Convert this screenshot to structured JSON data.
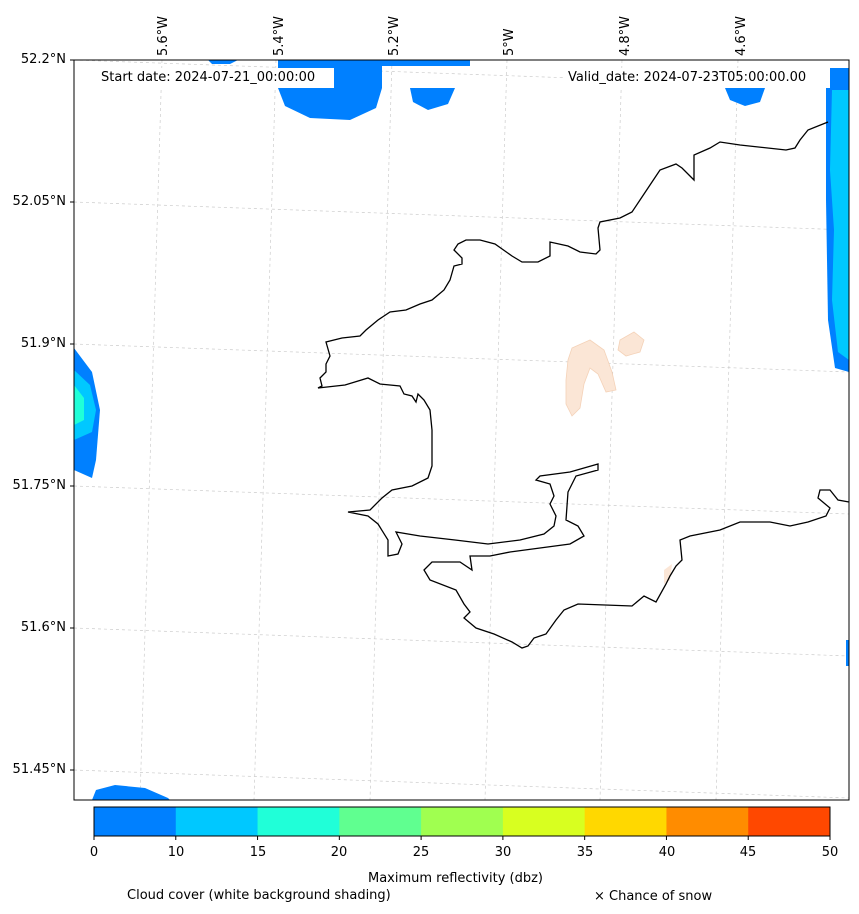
{
  "map": {
    "start_date": "Start date: 2024-07-21_00:00:00",
    "valid_date": "Valid_date: 2024-07-23T05:00:00.00",
    "lon_labels": [
      "5.6°W",
      "5.4°W",
      "5.2°W",
      "5°W",
      "4.8°W",
      "4.6°W"
    ],
    "lat_labels": [
      "52.2°N",
      "52.05°N",
      "51.9°N",
      "51.75°N",
      "51.6°N",
      "51.45°N"
    ]
  },
  "colorbar": {
    "label": "Maximum reflectivity (dbz)",
    "ticks": [
      "0",
      "10",
      "15",
      "20",
      "25",
      "30",
      "35",
      "40",
      "45",
      "50"
    ],
    "colors": [
      "#0080ff",
      "#00c8ff",
      "#20ffd8",
      "#60ff90",
      "#a0ff50",
      "#d8ff20",
      "#ffd800",
      "#ff8c00",
      "#ff4800"
    ]
  },
  "legend": {
    "cloud_cover": "Cloud cover (white background shading)",
    "snow": "× Chance of snow"
  }
}
